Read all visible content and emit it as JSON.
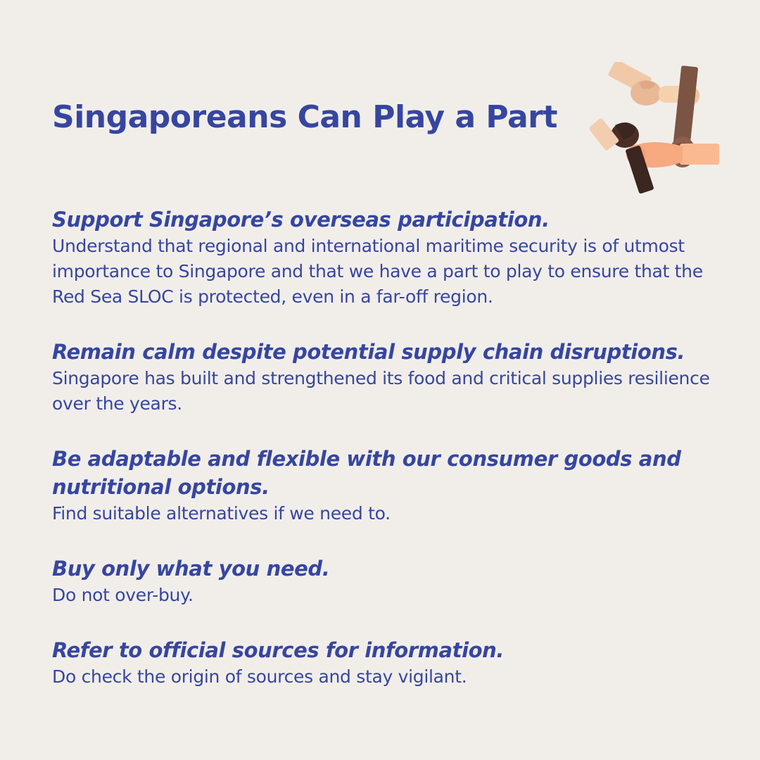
{
  "title": "Singaporeans Can Play a Part",
  "icon": "joined-hands-icon",
  "colors": {
    "background": "#f1eeea",
    "text": "#3646a0"
  },
  "items": [
    {
      "heading": "Support Singapore’s overseas participation.",
      "body": "Understand that regional and international maritime security is of utmost importance to Singapore and that we have a part to play to ensure that the Red Sea SLOC is protected, even in a far-off region."
    },
    {
      "heading": "Remain calm despite potential supply chain disruptions.",
      "body": "Singapore has built and strengthened its food and critical supplies resilience over the years."
    },
    {
      "heading": "Be adaptable and flexible with our consumer goods and nutritional options.",
      "body": "Find suitable alternatives if we need to."
    },
    {
      "heading": "Buy only what you need.",
      "body": "Do not over-buy."
    },
    {
      "heading": "Refer to official sources for information.",
      "body": "Do check the origin of sources and stay vigilant."
    }
  ]
}
